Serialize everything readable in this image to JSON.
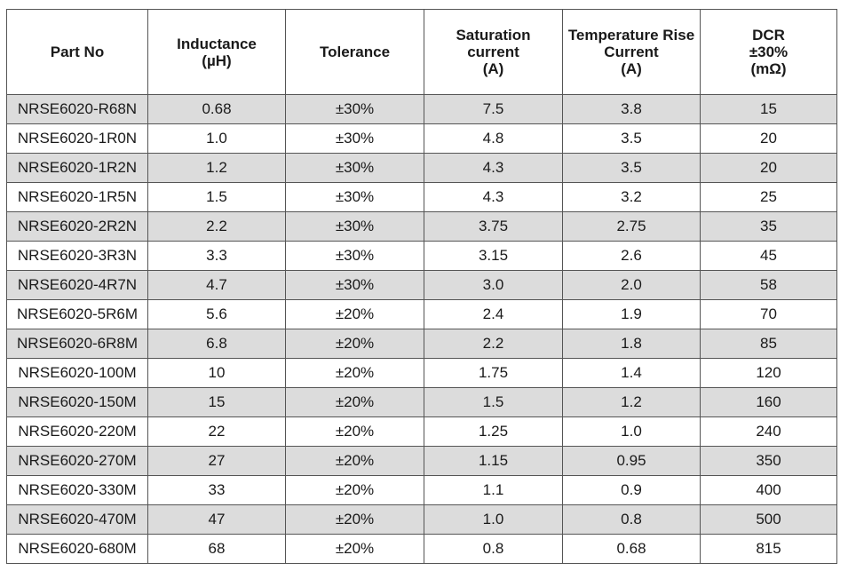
{
  "table": {
    "headers": [
      [
        "Part No"
      ],
      [
        "Inductance",
        "(µH)"
      ],
      [
        "Tolerance"
      ],
      [
        "Saturation",
        "current",
        "(A)"
      ],
      [
        "Temperature Rise",
        "Current",
        "(A)"
      ],
      [
        "DCR",
        "±30%",
        "(mΩ)"
      ]
    ],
    "rows": [
      [
        "NRSE6020-R68N",
        "0.68",
        "±30%",
        "7.5",
        "3.8",
        "15"
      ],
      [
        "NRSE6020-1R0N",
        "1.0",
        "±30%",
        "4.8",
        "3.5",
        "20"
      ],
      [
        "NRSE6020-1R2N",
        "1.2",
        "±30%",
        "4.3",
        "3.5",
        "20"
      ],
      [
        "NRSE6020-1R5N",
        "1.5",
        "±30%",
        "4.3",
        "3.2",
        "25"
      ],
      [
        "NRSE6020-2R2N",
        "2.2",
        "±30%",
        "3.75",
        "2.75",
        "35"
      ],
      [
        "NRSE6020-3R3N",
        "3.3",
        "±30%",
        "3.15",
        "2.6",
        "45"
      ],
      [
        "NRSE6020-4R7N",
        "4.7",
        "±30%",
        "3.0",
        "2.0",
        "58"
      ],
      [
        "NRSE6020-5R6M",
        "5.6",
        "±20%",
        "2.4",
        "1.9",
        "70"
      ],
      [
        "NRSE6020-6R8M",
        "6.8",
        "±20%",
        "2.2",
        "1.8",
        "85"
      ],
      [
        "NRSE6020-100M",
        "10",
        "±20%",
        "1.75",
        "1.4",
        "120"
      ],
      [
        "NRSE6020-150M",
        "15",
        "±20%",
        "1.5",
        "1.2",
        "160"
      ],
      [
        "NRSE6020-220M",
        "22",
        "±20%",
        "1.25",
        "1.0",
        "240"
      ],
      [
        "NRSE6020-270M",
        "27",
        "±20%",
        "1.15",
        "0.95",
        "350"
      ],
      [
        "NRSE6020-330M",
        "33",
        "±20%",
        "1.1",
        "0.9",
        "400"
      ],
      [
        "NRSE6020-470M",
        "47",
        "±20%",
        "1.0",
        "0.8",
        "500"
      ],
      [
        "NRSE6020-680M",
        "68",
        "±20%",
        "0.8",
        "0.68",
        "815"
      ]
    ],
    "row_colors": {
      "shaded": "#dcdcdc",
      "plain": "#ffffff",
      "border": "#555555"
    }
  }
}
